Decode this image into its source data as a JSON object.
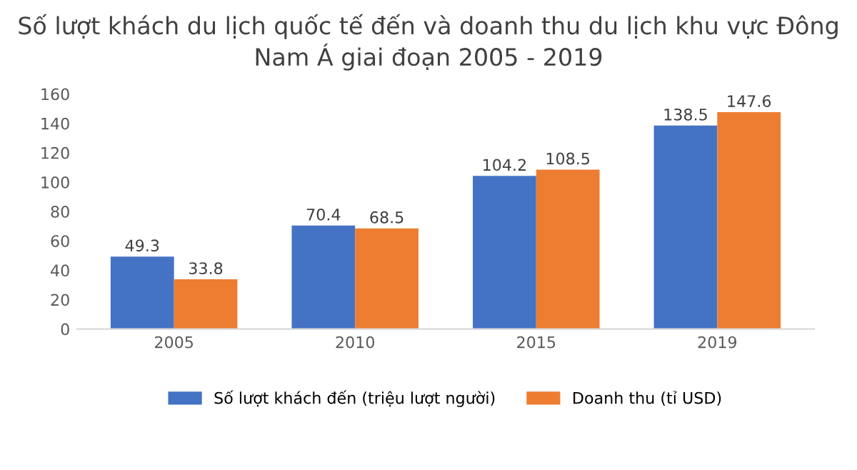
{
  "chart_data": {
    "type": "bar",
    "title": "Số lượt khách du lịch quốc tế đến và doanh thu du lịch khu vực Đông Nam Á giai đoạn 2005 - 2019",
    "categories": [
      "2005",
      "2010",
      "2015",
      "2019"
    ],
    "series": [
      {
        "name": "Số lượt khách đến (triệu lượt người)",
        "color": "#4472c4",
        "values": [
          49.3,
          70.4,
          104.2,
          138.5
        ]
      },
      {
        "name": "Doanh thu (tỉ USD)",
        "color": "#ed7d31",
        "values": [
          33.8,
          68.5,
          108.5,
          147.6
        ]
      }
    ],
    "ylim": [
      0,
      160
    ],
    "yticks": [
      0,
      20,
      40,
      60,
      80,
      100,
      120,
      140,
      160
    ],
    "data_labels": true,
    "legend": "bottom",
    "grid": false
  }
}
